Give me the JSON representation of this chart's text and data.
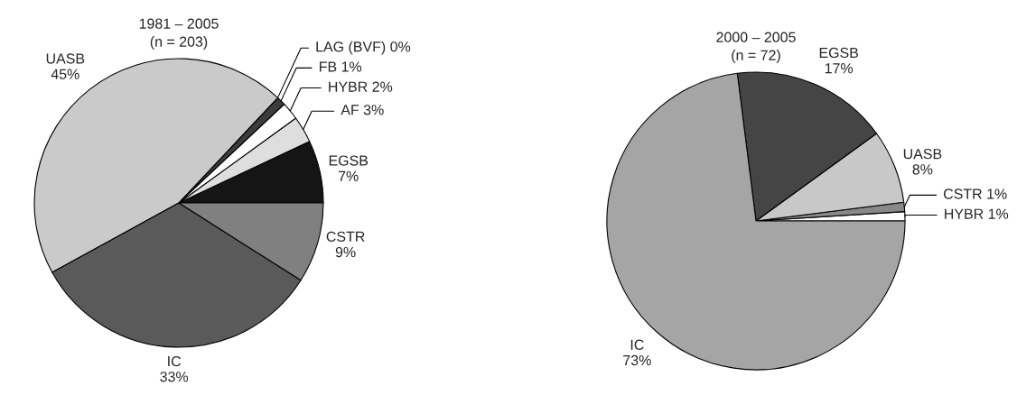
{
  "chart_data": [
    {
      "type": "pie",
      "title": "1981 – 2005",
      "subtitle": "(n = 203)",
      "categories": [
        "EGSB",
        "AF",
        "HYBR",
        "FB",
        "LAG (BVF)",
        "UASB",
        "IC",
        "CSTR"
      ],
      "values": [
        7,
        3,
        2,
        1,
        0,
        45,
        33,
        9
      ],
      "value_labels": [
        "7%",
        "3%",
        "2%",
        "1%",
        "0%",
        "45%",
        "33%",
        "9%"
      ],
      "colors": [
        "#151515",
        "#dedede",
        "#ffffff",
        "#3c3c3c",
        "#bbbbbb",
        "#cacaca",
        "#5a5a5a",
        "#808080"
      ]
    },
    {
      "type": "pie",
      "title": "2000 – 2005",
      "subtitle": "(n = 72)",
      "categories": [
        "HYBR",
        "CSTR",
        "UASB",
        "EGSB",
        "IC"
      ],
      "values": [
        1,
        1,
        8,
        17,
        73
      ],
      "value_labels": [
        "1%",
        "1%",
        "8%",
        "17%",
        "73%"
      ],
      "colors": [
        "#ffffff",
        "#888888",
        "#c8c8c8",
        "#454545",
        "#a5a5a5"
      ]
    }
  ]
}
